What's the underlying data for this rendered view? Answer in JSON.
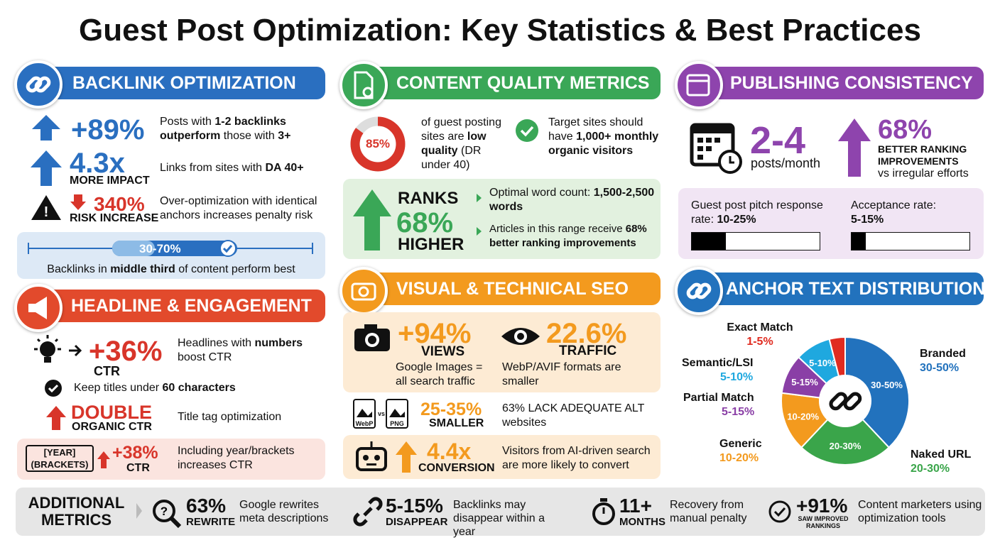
{
  "title": "Guest Post Optimization: Key Statistics & Best Practices",
  "backlink": {
    "heading": "BACKLINK OPTIMIZATION",
    "items": [
      {
        "big": "+89%",
        "desc": [
          "Posts with ",
          "1-2 backlinks outperform",
          " those with ",
          "3+"
        ]
      },
      {
        "big": "4.3x",
        "sub": "MORE IMPACT",
        "desc": [
          "Links from sites with ",
          "DA 40+"
        ]
      },
      {
        "big": "340%",
        "sub": "RISK INCREASE",
        "desc": [
          "Over-optimization with identical anchors increases penalty risk"
        ]
      }
    ],
    "range": "30-70%",
    "caption": [
      "Backlinks in ",
      "middle third",
      " of content perform best"
    ]
  },
  "headline": {
    "heading": "HEADLINE & ENGAGEMENT",
    "stat": {
      "big": "+36%",
      "sub": "CTR",
      "desc": [
        "Headlines with ",
        "numbers",
        " boost CTR"
      ]
    },
    "tip": [
      "Keep titles under ",
      "60 characters"
    ],
    "double": {
      "big": "DOUBLE",
      "sub": "ORGANIC CTR",
      "desc": "Title tag optimization"
    },
    "year": {
      "tag": [
        "[YEAR]",
        "(BRACKETS)"
      ],
      "big": "+38%",
      "sub": "CTR",
      "desc": "Including year/brackets increases CTR"
    }
  },
  "content": {
    "heading": "CONTENT QUALITY METRICS",
    "donut": {
      "value": 85,
      "label": "85%"
    },
    "donut_text": [
      "of guest posting sites are ",
      "low quality",
      " (DR under 40)"
    ],
    "target": [
      "Target sites should have ",
      "1,000+ monthly organic visitors"
    ],
    "ranks": [
      "RANKS",
      "68%",
      "HIGHER"
    ],
    "bullets": [
      [
        "Optimal word count: ",
        "1,500-2,500 words"
      ],
      [
        "Articles in this range receive ",
        "68% better ranking improvements"
      ]
    ]
  },
  "visual": {
    "heading": "VISUAL & TECHNICAL SEO",
    "views": {
      "big": "+94%",
      "sub": "VIEWS",
      "desc": "Google Images = all search traffic"
    },
    "traffic": {
      "big": "22.6%",
      "sub": "TRAFFIC",
      "desc": "WebP/AVIF formats are smaller"
    },
    "formats": {
      "icons": [
        "WebP",
        "vs",
        "PNG"
      ],
      "big": "25-35%",
      "sub": "SMALLER",
      "desc": [
        "63% LACK ADEQUATE ALT",
        "websites"
      ]
    },
    "ai": {
      "big": "4.4x",
      "sub": "CONVERSION",
      "desc": "Visitors from AI-driven search are more likely to convert"
    }
  },
  "publishing": {
    "heading": "PUBLISHING CONSISTENCY",
    "frequency": {
      "big": "2-4",
      "sub": "posts/month"
    },
    "ranking": {
      "big": "68%",
      "sub": "BETTER RANKING IMPROVEMENTS",
      "desc": "vs irregular efforts"
    },
    "rates": [
      {
        "label": "Guest post pitch response rate: ",
        "value": "10-25%"
      },
      {
        "label": "Acceptance rate: ",
        "value": "5-15%"
      }
    ]
  },
  "anchor": {
    "heading": "ANCHOR TEXT DISTRIBUTION",
    "segments": [
      {
        "name": "Branded",
        "range": "30-50%",
        "color": "#2272bd",
        "share": 38
      },
      {
        "name": "Naked URL",
        "range": "20-30%",
        "color": "#3aa54a",
        "share": 24
      },
      {
        "name": "Generic",
        "range": "10-20%",
        "color": "#f39a1e",
        "share": 15
      },
      {
        "name": "Partial Match",
        "range": "5-15%",
        "color": "#8a3fa6",
        "share": 10
      },
      {
        "name": "Semantic/LSI",
        "range": "5-10%",
        "color": "#1fa8df",
        "share": 9
      },
      {
        "name": "Exact Match",
        "range": "1-5%",
        "color": "#e02b20",
        "share": 4
      }
    ]
  },
  "additional": {
    "heading": "ADDITIONAL METRICS",
    "items": [
      {
        "big": "63%",
        "sub": "REWRITE",
        "desc": "Google rewrites meta descriptions"
      },
      {
        "big": "5-15%",
        "sub": "DISAPPEAR",
        "desc": "Backlinks may disappear within a year"
      },
      {
        "big": "11+",
        "sub": "MONTHS",
        "desc": "Recovery from manual penalty"
      },
      {
        "big": "+91%",
        "sub": "SAW IMPROVED RANKINGS",
        "desc": "Content marketers using optimization tools"
      }
    ]
  }
}
